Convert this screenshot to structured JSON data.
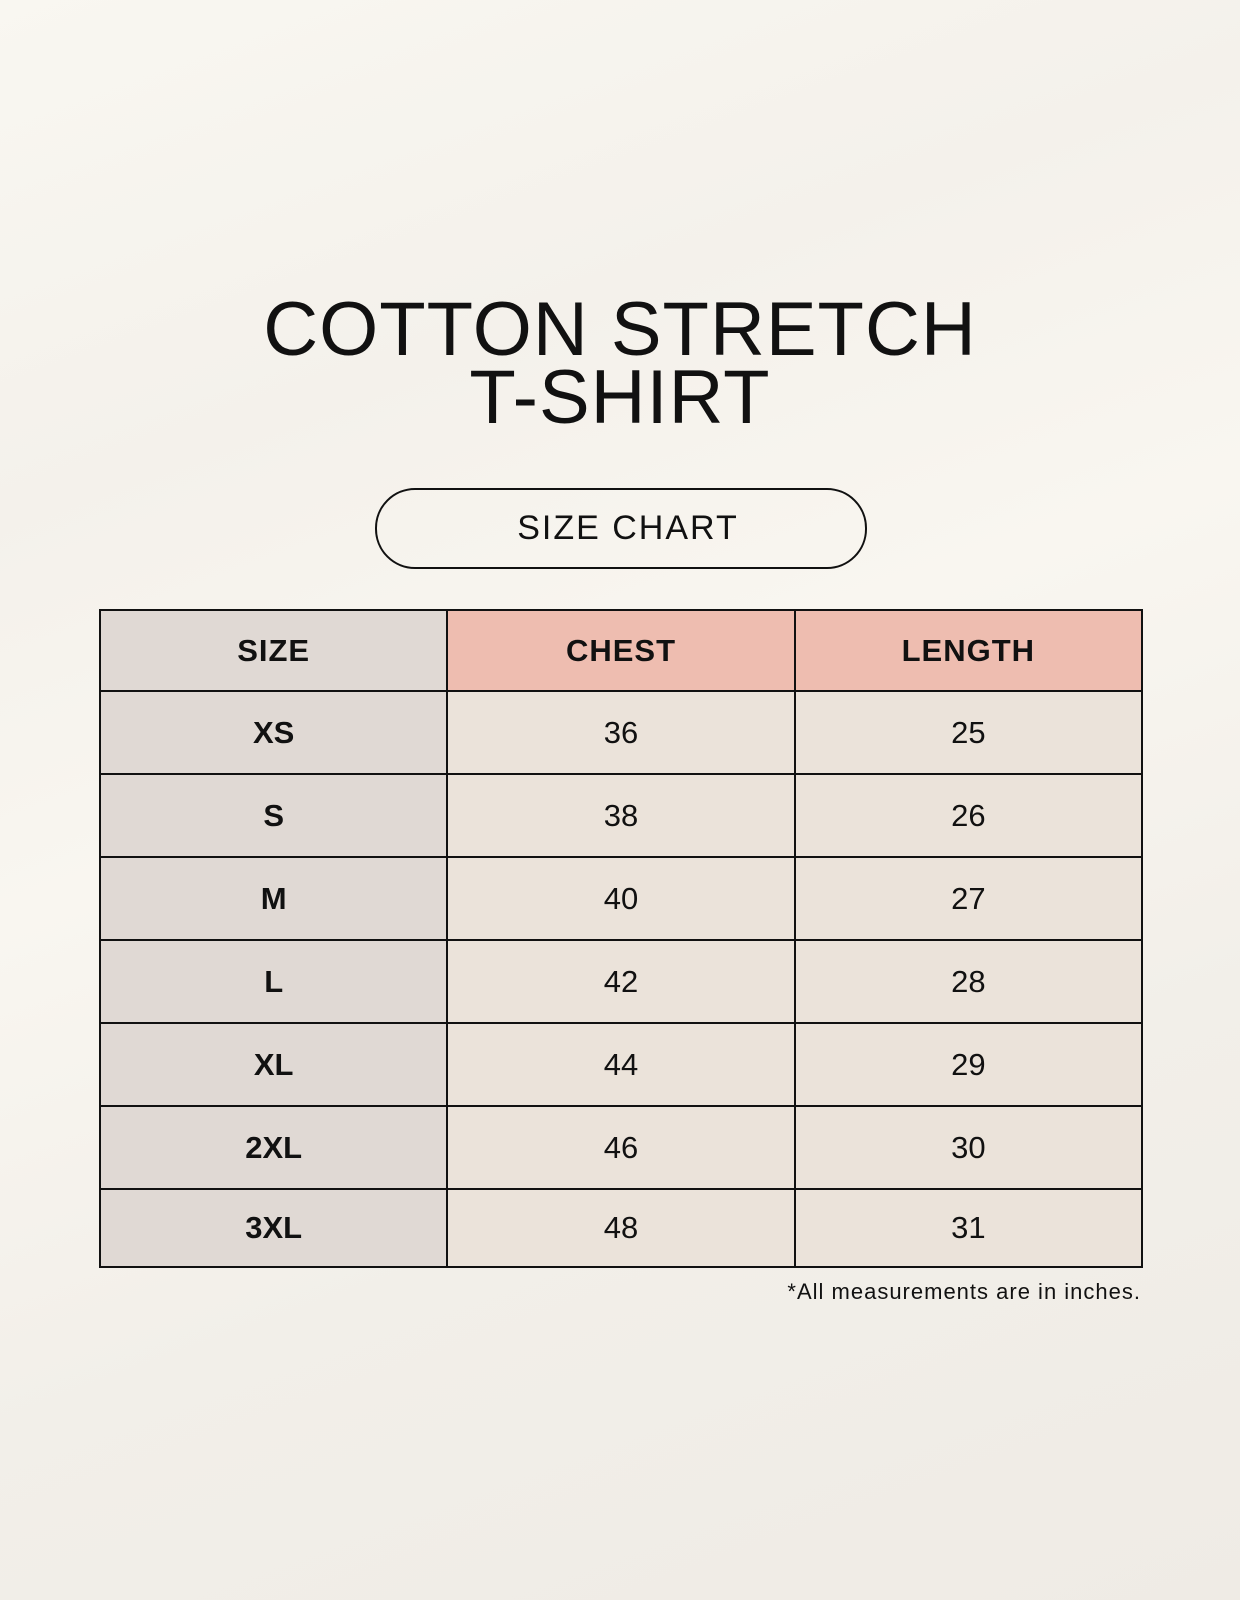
{
  "title": {
    "line1": "COTTON STRETCH",
    "line2": "T-SHIRT"
  },
  "subtitle": "SIZE CHART",
  "table": {
    "headers": [
      "SIZE",
      "CHEST",
      "LENGTH"
    ],
    "rows": [
      [
        "XS",
        "36",
        "25"
      ],
      [
        "S",
        "38",
        "26"
      ],
      [
        "M",
        "40",
        "27"
      ],
      [
        "L",
        "42",
        "28"
      ],
      [
        "XL",
        "44",
        "29"
      ],
      [
        "2XL",
        "46",
        "30"
      ],
      [
        "3XL",
        "48",
        "31"
      ]
    ]
  },
  "footnote": "*All measurements are in inches.",
  "colors": {
    "size_column": "#e0d9d4",
    "header_accent": "#eebdb0",
    "cell": "#ebe3da"
  }
}
